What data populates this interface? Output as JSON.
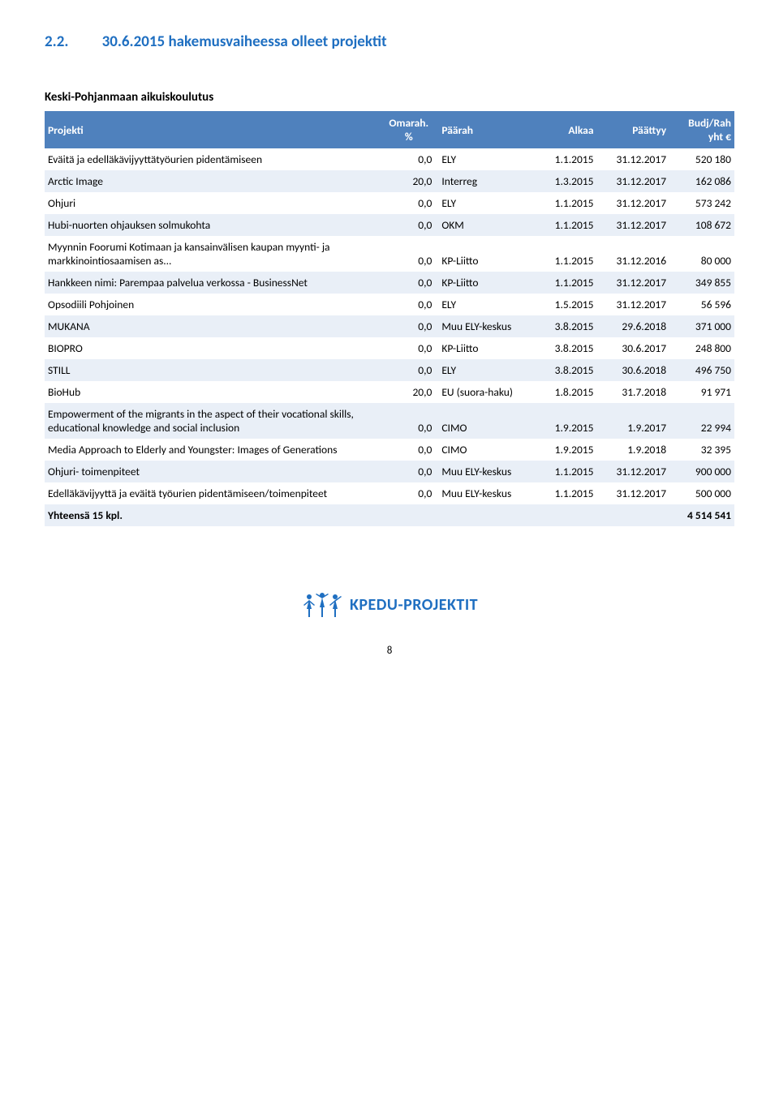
{
  "heading": {
    "number": "2.2.",
    "title": "30.6.2015 hakemusvaiheessa olleet projektit"
  },
  "subtitle": "Keski-Pohjanmaan aikuiskoulutus",
  "columns": {
    "c1": "Projekti",
    "c2a": "Omarah.",
    "c2b": "%",
    "c3": "Päärah",
    "c4": "Alkaa",
    "c5": "Päättyy",
    "c6a": "Budj/Rah",
    "c6b": "yht €"
  },
  "rows": [
    {
      "p": "Eväitä ja edelläkävijyyttätyöurien pidentämiseen",
      "o": "0,0",
      "r": "ELY",
      "a": "1.1.2015",
      "e": "31.12.2017",
      "b": "520 180"
    },
    {
      "p": "Arctic Image",
      "o": "20,0",
      "r": "Interreg",
      "a": "1.3.2015",
      "e": "31.12.2017",
      "b": "162 086"
    },
    {
      "p": "Ohjuri",
      "o": "0,0",
      "r": "ELY",
      "a": "1.1.2015",
      "e": "31.12.2017",
      "b": "573 242"
    },
    {
      "p": "Hubi-nuorten ohjauksen solmukohta",
      "o": "0,0",
      "r": "OKM",
      "a": "1.1.2015",
      "e": "31.12.2017",
      "b": "108 672"
    },
    {
      "p": "Myynnin Foorumi Kotimaan ja kansainvälisen kaupan myynti- ja markkinointiosaamisen as...",
      "o": "0,0",
      "r": "KP-Liitto",
      "a": "1.1.2015",
      "e": "31.12.2016",
      "b": "80 000"
    },
    {
      "p": "Hankkeen nimi: Parempaa palvelua verkossa - BusinessNet",
      "o": "0,0",
      "r": "KP-Liitto",
      "a": "1.1.2015",
      "e": "31.12.2017",
      "b": "349 855"
    },
    {
      "p": "Opsodiili Pohjoinen",
      "o": "0,0",
      "r": "ELY",
      "a": "1.5.2015",
      "e": "31.12.2017",
      "b": "56 596"
    },
    {
      "p": "MUKANA",
      "o": "0,0",
      "r": "Muu ELY-keskus",
      "a": "3.8.2015",
      "e": "29.6.2018",
      "b": "371 000"
    },
    {
      "p": "BIOPRO",
      "o": "0,0",
      "r": "KP-Liitto",
      "a": "3.8.2015",
      "e": "30.6.2017",
      "b": "248 800"
    },
    {
      "p": "STILL",
      "o": "0,0",
      "r": "ELY",
      "a": "3.8.2015",
      "e": "30.6.2018",
      "b": "496 750"
    },
    {
      "p": "BioHub",
      "o": "20,0",
      "r": "EU (suora-haku)",
      "a": "1.8.2015",
      "e": "31.7.2018",
      "b": "91 971"
    },
    {
      "p": "Empowerment of the migrants in the aspect of their vocational skills, educational knowledge and social inclusion",
      "o": "0,0",
      "r": "CIMO",
      "a": "1.9.2015",
      "e": "1.9.2017",
      "b": "22 994"
    },
    {
      "p": "Media Approach to Elderly and Youngster: Images of Generations",
      "o": "0,0",
      "r": "CIMO",
      "a": "1.9.2015",
      "e": "1.9.2018",
      "b": "32 395"
    },
    {
      "p": "Ohjuri- toimenpiteet",
      "o": "0,0",
      "r": "Muu ELY-keskus",
      "a": "1.1.2015",
      "e": "31.12.2017",
      "b": "900 000"
    },
    {
      "p": "Edelläkävijyyttä ja eväitä työurien pidentämiseen/toimenpiteet",
      "o": "0,0",
      "r": "Muu ELY-keskus",
      "a": "1.1.2015",
      "e": "31.12.2017",
      "b": "500 000"
    }
  ],
  "total_label": "Yhteensä   15 kpl.",
  "total_value": "4 514 541",
  "logo_text": "KPEDU-PROJEKTIT",
  "page_number": "8",
  "colors": {
    "heading": "#1f6fc1",
    "table_header_bg": "#4f81bd",
    "table_header_fg": "#ffffff",
    "band_bg": "#e9eff7",
    "logo": "#1f6fc1"
  }
}
